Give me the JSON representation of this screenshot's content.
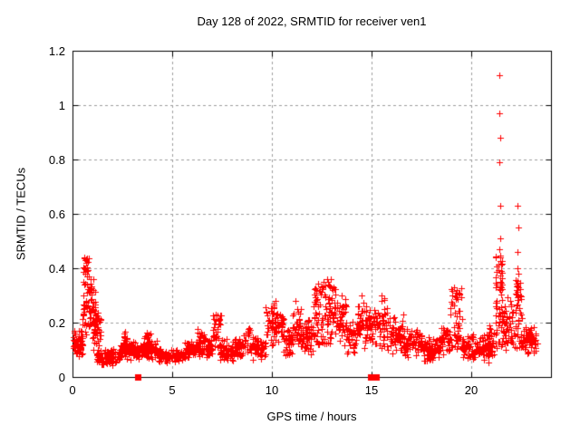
{
  "colors": {
    "background": "#ffffff",
    "marker": "#ff0000",
    "border": "#000000",
    "grid": "#9e9e9e",
    "text": "#000000"
  },
  "chart_data": {
    "type": "scatter",
    "title": "Day 128 of 2022, SRMTID for receiver ven1",
    "xlabel": "GPS time / hours",
    "ylabel": "SRMTID / TECUs",
    "xlim": [
      0,
      24
    ],
    "ylim": [
      0,
      1.2
    ],
    "xticks": [
      0,
      5,
      10,
      15,
      20
    ],
    "xtick_labels": [
      "0",
      "5",
      "10",
      "15",
      "20"
    ],
    "yticks": [
      0,
      0.2,
      0.4,
      0.6,
      0.8,
      1,
      1.2
    ],
    "ytick_labels": [
      "0",
      "0.2",
      "0.4",
      "0.6",
      "0.8",
      "1",
      "1.2"
    ],
    "grid": true,
    "legend": "none",
    "marker": {
      "shape": "plus",
      "size": 7,
      "color": "#ff0000"
    },
    "series_name": "SRMTID",
    "feature_points": [
      [
        21.4,
        1.11
      ],
      [
        21.42,
        0.97
      ],
      [
        21.44,
        0.88
      ],
      [
        21.41,
        0.79
      ],
      [
        21.46,
        0.63
      ],
      [
        21.47,
        0.51
      ],
      [
        21.43,
        0.47
      ],
      [
        21.45,
        0.44
      ],
      [
        22.3,
        0.63
      ],
      [
        22.36,
        0.55
      ],
      [
        22.34,
        0.46
      ],
      [
        22.31,
        0.4
      ],
      [
        22.35,
        0.38
      ],
      [
        0.6,
        0.44
      ],
      [
        0.64,
        0.43
      ],
      [
        0.68,
        0.42
      ],
      [
        0.58,
        0.4
      ],
      [
        0.72,
        0.39
      ],
      [
        7.2,
        0.23
      ],
      [
        10.18,
        0.28
      ],
      [
        11.2,
        0.28
      ],
      [
        12.58,
        0.35
      ],
      [
        12.95,
        0.36
      ],
      [
        13.5,
        0.3
      ],
      [
        14.5,
        0.3
      ],
      [
        15.5,
        0.3
      ],
      [
        16.6,
        0.23
      ],
      [
        19.15,
        0.33
      ],
      [
        19.22,
        0.31
      ]
    ],
    "zero_square_markers_x": [
      3.25,
      14.97,
      15.22
    ],
    "density_bands": [
      [
        0.02,
        0.5,
        0.07,
        0.16,
        60,
        "c"
      ],
      [
        0.05,
        0.45,
        0.12,
        0.18,
        12,
        "u"
      ],
      [
        0.5,
        0.85,
        0.15,
        0.44,
        55,
        "u"
      ],
      [
        0.85,
        1.15,
        0.17,
        0.38,
        40,
        "u"
      ],
      [
        1.0,
        1.45,
        0.1,
        0.26,
        45,
        "c"
      ],
      [
        1.2,
        2.4,
        0.04,
        0.11,
        110,
        "c"
      ],
      [
        2.4,
        3.2,
        0.06,
        0.14,
        70,
        "c"
      ],
      [
        2.55,
        2.75,
        0.12,
        0.17,
        10,
        "u"
      ],
      [
        3.2,
        4.3,
        0.06,
        0.14,
        90,
        "c"
      ],
      [
        3.5,
        4.0,
        0.11,
        0.17,
        15,
        "u"
      ],
      [
        4.3,
        5.6,
        0.05,
        0.11,
        100,
        "c"
      ],
      [
        5.6,
        6.6,
        0.06,
        0.14,
        80,
        "c"
      ],
      [
        6.2,
        6.6,
        0.11,
        0.18,
        15,
        "u"
      ],
      [
        6.6,
        7.0,
        0.07,
        0.15,
        35,
        "c"
      ],
      [
        7.0,
        7.45,
        0.1,
        0.23,
        30,
        "u"
      ],
      [
        7.4,
        8.6,
        0.05,
        0.15,
        90,
        "c"
      ],
      [
        8.6,
        8.9,
        0.09,
        0.18,
        18,
        "u"
      ],
      [
        8.9,
        9.7,
        0.06,
        0.15,
        65,
        "c"
      ],
      [
        9.7,
        10.1,
        0.1,
        0.27,
        35,
        "u"
      ],
      [
        10.1,
        10.6,
        0.1,
        0.28,
        45,
        "c"
      ],
      [
        10.6,
        11.0,
        0.06,
        0.18,
        35,
        "c"
      ],
      [
        11.0,
        11.45,
        0.1,
        0.28,
        40,
        "c"
      ],
      [
        11.45,
        12.1,
        0.08,
        0.22,
        55,
        "c"
      ],
      [
        12.1,
        12.7,
        0.12,
        0.35,
        60,
        "u"
      ],
      [
        12.7,
        13.2,
        0.12,
        0.36,
        50,
        "u"
      ],
      [
        13.2,
        13.75,
        0.1,
        0.3,
        45,
        "c"
      ],
      [
        13.75,
        14.25,
        0.08,
        0.22,
        40,
        "c"
      ],
      [
        14.25,
        14.7,
        0.1,
        0.3,
        40,
        "c"
      ],
      [
        14.7,
        15.45,
        0.1,
        0.27,
        60,
        "c"
      ],
      [
        15.45,
        15.8,
        0.1,
        0.3,
        30,
        "u"
      ],
      [
        15.8,
        16.6,
        0.08,
        0.23,
        60,
        "c"
      ],
      [
        16.6,
        17.6,
        0.07,
        0.18,
        75,
        "c"
      ],
      [
        17.6,
        18.4,
        0.05,
        0.15,
        65,
        "c"
      ],
      [
        18.4,
        18.9,
        0.08,
        0.2,
        40,
        "c"
      ],
      [
        18.9,
        19.55,
        0.1,
        0.33,
        55,
        "u"
      ],
      [
        19.55,
        20.6,
        0.06,
        0.16,
        80,
        "c"
      ],
      [
        20.6,
        21.15,
        0.05,
        0.17,
        50,
        "c"
      ],
      [
        20.85,
        21.0,
        0.14,
        0.21,
        8,
        "u"
      ],
      [
        21.2,
        21.55,
        0.1,
        0.45,
        60,
        "u"
      ],
      [
        21.55,
        22.2,
        0.08,
        0.3,
        55,
        "c"
      ],
      [
        22.2,
        22.55,
        0.1,
        0.36,
        45,
        "u"
      ],
      [
        22.55,
        23.3,
        0.07,
        0.2,
        70,
        "c"
      ]
    ]
  }
}
